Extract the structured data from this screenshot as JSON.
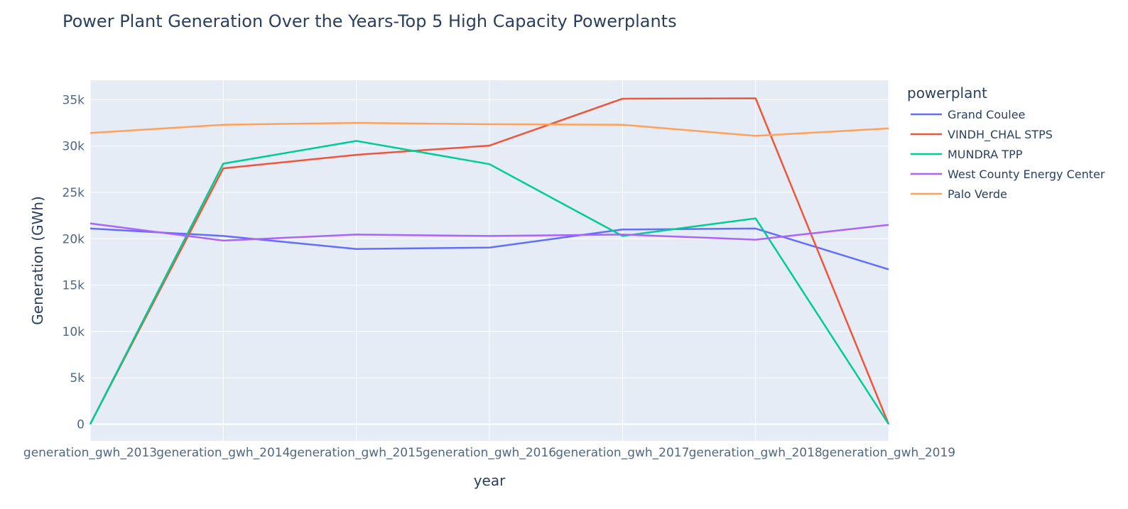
{
  "chart_data": {
    "type": "line",
    "title": "Power Plant Generation Over the Years-Top 5 High Capacity Powerplants",
    "xlabel": "year",
    "ylabel": "Generation (GWh)",
    "categories": [
      "generation_gwh_2013",
      "generation_gwh_2014",
      "generation_gwh_2015",
      "generation_gwh_2016",
      "generation_gwh_2017",
      "generation_gwh_2018",
      "generation_gwh_2019"
    ],
    "ylim": [
      -1800,
      37100
    ],
    "yticks": [
      0,
      5000,
      10000,
      15000,
      20000,
      25000,
      30000,
      35000
    ],
    "ytick_labels": [
      "0",
      "5k",
      "10k",
      "15k",
      "20k",
      "25k",
      "30k",
      "35k"
    ],
    "grid": true,
    "legend": {
      "title": "powerplant",
      "placement": "right"
    },
    "series": [
      {
        "name": "Grand Coulee",
        "color": "#636efa",
        "values": [
          21100,
          20300,
          18900,
          19050,
          21000,
          21100,
          16700
        ]
      },
      {
        "name": "VINDH_CHAL STPS",
        "color": "#ef553b",
        "values": [
          0,
          27600,
          29050,
          30050,
          35100,
          35150,
          0
        ]
      },
      {
        "name": "MUNDRA TPP",
        "color": "#00cc96",
        "values": [
          0,
          28100,
          30550,
          28050,
          20300,
          22200,
          0
        ]
      },
      {
        "name": "West County Energy Center",
        "color": "#ab63fa",
        "values": [
          21650,
          19800,
          20450,
          20300,
          20450,
          19900,
          21500
        ]
      },
      {
        "name": "Palo Verde",
        "color": "#ffa15a",
        "values": [
          31400,
          32300,
          32500,
          32350,
          32300,
          31100,
          31900
        ]
      }
    ]
  }
}
